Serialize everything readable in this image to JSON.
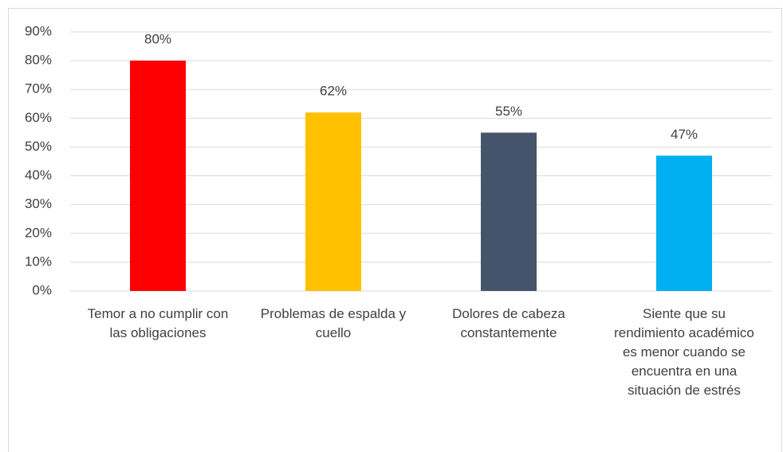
{
  "chart_data": {
    "type": "bar",
    "categories": [
      "Temor a no cumplir con las obligaciones",
      "Problemas de espalda y cuello",
      "Dolores de cabeza constantemente",
      "Siente que su rendimiento académico es menor cuando se encuentra en una situación de estrés"
    ],
    "values": [
      80,
      62,
      55,
      47
    ],
    "value_labels": [
      "80%",
      "62%",
      "55%",
      "47%"
    ],
    "colors": [
      "#ff0000",
      "#ffc000",
      "#44546a",
      "#00b0f0"
    ],
    "ylim": [
      0,
      90
    ],
    "yticks": [
      {
        "value": 0,
        "label": "0%"
      },
      {
        "value": 10,
        "label": "10%"
      },
      {
        "value": 20,
        "label": "20%"
      },
      {
        "value": 30,
        "label": "30%"
      },
      {
        "value": 40,
        "label": "40%"
      },
      {
        "value": 50,
        "label": "50%"
      },
      {
        "value": 60,
        "label": "60%"
      },
      {
        "value": 70,
        "label": "70%"
      },
      {
        "value": 80,
        "label": "80%"
      },
      {
        "value": 90,
        "label": "90%"
      }
    ],
    "grid": true
  }
}
